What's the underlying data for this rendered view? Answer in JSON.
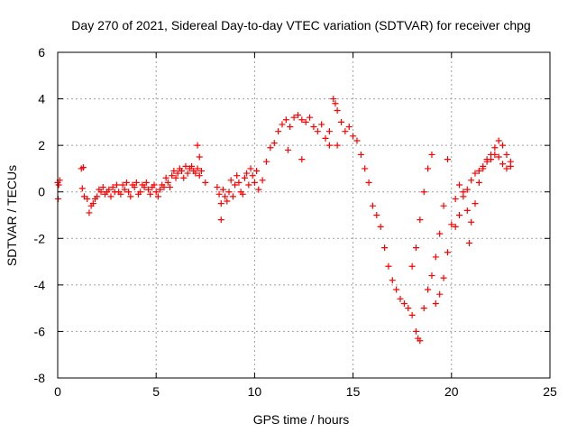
{
  "chart_data": {
    "type": "scatter",
    "title": "Day 270 of 2021, Sidereal Day-to-day VTEC variation (SDTVAR) for receiver chpg",
    "xlabel": "GPS time / hours",
    "ylabel": "SDTVAR / TECUs",
    "xlim": [
      0,
      25
    ],
    "ylim": [
      -8,
      6
    ],
    "x_ticks": [
      0,
      5,
      10,
      15,
      20,
      25
    ],
    "y_ticks": [
      -8,
      -6,
      -4,
      -2,
      0,
      2,
      4,
      6
    ],
    "grid": true,
    "marker": "plus",
    "color": "#ff0000",
    "series": [
      {
        "name": "chpg SDTVAR",
        "x": [
          0.0,
          0.05,
          0.1,
          0.02,
          1.2,
          1.3,
          1.25,
          1.35,
          1.5,
          1.6,
          1.7,
          1.8,
          1.9,
          2.0,
          2.1,
          2.2,
          2.3,
          2.4,
          2.5,
          2.6,
          2.7,
          2.8,
          2.9,
          3.0,
          3.1,
          3.2,
          3.3,
          3.4,
          3.5,
          3.6,
          3.7,
          3.8,
          3.9,
          4.0,
          4.1,
          4.2,
          4.3,
          4.4,
          4.5,
          4.6,
          4.7,
          4.8,
          4.9,
          5.0,
          5.1,
          5.2,
          5.3,
          5.4,
          5.5,
          5.6,
          5.7,
          5.8,
          5.9,
          6.0,
          6.1,
          6.2,
          6.3,
          6.4,
          6.5,
          6.6,
          6.7,
          6.8,
          6.9,
          7.0,
          7.1,
          7.2,
          7.3,
          7.1,
          7.2,
          8.1,
          8.2,
          8.3,
          8.4,
          8.5,
          8.6,
          8.7,
          8.8,
          8.9,
          9.0,
          9.1,
          9.2,
          9.3,
          9.4,
          9.5,
          9.6,
          9.7,
          9.8,
          9.9,
          10.0,
          10.1,
          10.2,
          10.4,
          10.6,
          10.8,
          11.0,
          11.2,
          11.4,
          11.6,
          11.8,
          12.0,
          12.2,
          12.4,
          12.6,
          12.8,
          13.0,
          13.2,
          13.4,
          13.6,
          13.8,
          14.0,
          14.1,
          14.2,
          14.4,
          14.6,
          14.8,
          15.0,
          15.2,
          15.4,
          15.6,
          15.8,
          16.0,
          16.2,
          16.4,
          16.6,
          16.8,
          17.0,
          17.2,
          17.4,
          17.6,
          17.8,
          18.0,
          18.2,
          18.3,
          18.4,
          18.6,
          18.8,
          19.0,
          19.2,
          19.4,
          19.6,
          19.8,
          18.0,
          18.2,
          18.4,
          18.6,
          18.8,
          19.0,
          19.2,
          19.4,
          19.6,
          19.8,
          20.0,
          20.2,
          20.4,
          20.6,
          20.8,
          21.0,
          21.2,
          21.4,
          21.6,
          21.8,
          22.0,
          22.2,
          22.4,
          22.6,
          22.8,
          23.0,
          20.2,
          20.4,
          20.6,
          20.8,
          21.0,
          21.2,
          21.4,
          21.6,
          21.8,
          22.0,
          22.2,
          22.4,
          22.6,
          22.8,
          23.0,
          12.4,
          13.8,
          14.2,
          11.7,
          8.3,
          7.5,
          20.9
        ],
        "y": [
          0.4,
          0.3,
          0.5,
          -0.3,
          1.0,
          1.05,
          0.15,
          -0.2,
          -0.3,
          -0.9,
          -0.6,
          -0.5,
          -0.3,
          -0.2,
          0.1,
          0.0,
          0.2,
          -0.1,
          0.0,
          0.1,
          -0.2,
          0.2,
          0.0,
          0.3,
          0.0,
          -0.1,
          0.3,
          0.1,
          0.4,
          0.0,
          -0.2,
          0.3,
          0.2,
          0.4,
          -0.1,
          0.0,
          0.3,
          0.2,
          0.4,
          0.1,
          -0.1,
          0.2,
          0.3,
          0.0,
          -0.2,
          0.1,
          0.3,
          0.2,
          0.6,
          0.4,
          0.2,
          0.7,
          0.9,
          0.6,
          0.8,
          1.0,
          0.9,
          0.6,
          1.1,
          0.8,
          1.0,
          1.1,
          0.9,
          0.8,
          1.0,
          0.7,
          0.9,
          2.0,
          1.5,
          0.2,
          -0.1,
          -0.5,
          0.1,
          -0.2,
          -0.4,
          0.0,
          0.5,
          -0.2,
          0.3,
          0.7,
          0.4,
          0.0,
          -0.1,
          0.6,
          0.8,
          0.3,
          1.0,
          0.7,
          0.4,
          0.9,
          0.1,
          0.5,
          1.3,
          1.9,
          2.1,
          2.6,
          2.9,
          3.1,
          2.8,
          3.2,
          3.3,
          3.1,
          3.0,
          3.2,
          2.8,
          2.6,
          2.9,
          2.3,
          2.0,
          4.0,
          3.8,
          3.5,
          3.0,
          2.6,
          2.8,
          2.4,
          2.2,
          1.6,
          1.0,
          0.4,
          -0.6,
          -1.0,
          -1.5,
          -2.4,
          -3.2,
          -3.8,
          -4.2,
          -4.6,
          -4.8,
          -5.0,
          -5.3,
          -6.0,
          -6.3,
          -6.4,
          -5.0,
          -4.2,
          -3.6,
          -2.8,
          -1.8,
          -0.6,
          1.4,
          -3.2,
          -2.4,
          -1.2,
          0.0,
          1.0,
          1.6,
          -4.8,
          -4.4,
          -3.7,
          -2.6,
          -1.4,
          -0.3,
          0.3,
          0.0,
          -0.8,
          -1.3,
          -0.5,
          0.4,
          1.0,
          1.4,
          1.6,
          1.9,
          2.2,
          2.0,
          1.6,
          1.3,
          -1.5,
          -1.0,
          -0.2,
          0.1,
          0.5,
          0.8,
          0.9,
          1.1,
          1.3,
          1.4,
          1.6,
          1.5,
          1.2,
          1.0,
          1.1,
          1.4,
          2.6,
          2.0,
          1.8,
          -1.2,
          0.4,
          -2.2
        ]
      }
    ]
  }
}
